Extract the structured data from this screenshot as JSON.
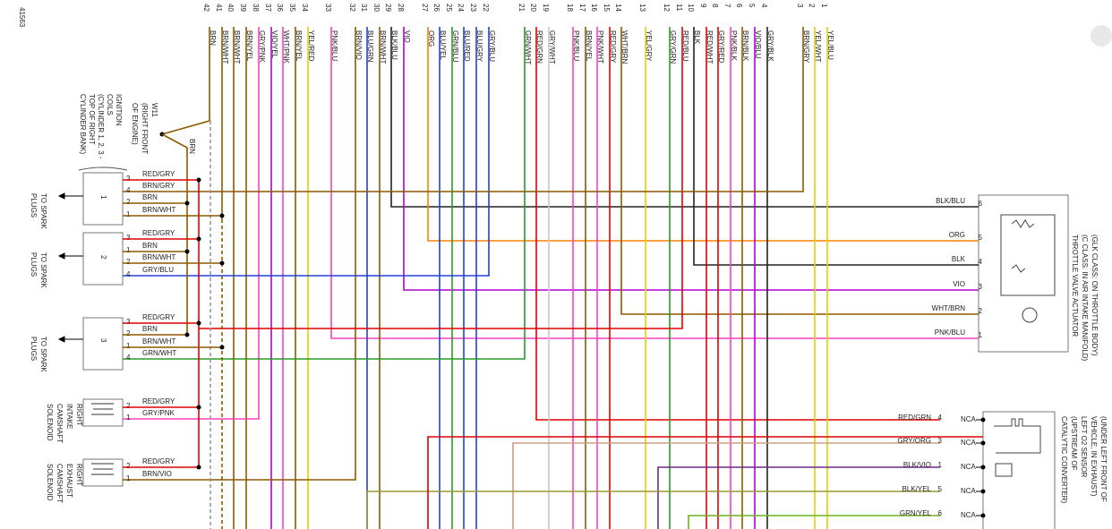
{
  "doc_id": "41563",
  "connector": {
    "pins": [
      {
        "pin": "42",
        "wire": "BRN"
      },
      {
        "pin": "41",
        "wire": "BRN/WHT"
      },
      {
        "pin": "40",
        "wire": "BRN/WHT"
      },
      {
        "pin": "39",
        "wire": "BRN/YEL"
      },
      {
        "pin": "38",
        "wire": "GRY/PNK"
      },
      {
        "pin": "37",
        "wire": "VIO/YEL"
      },
      {
        "pin": "36",
        "wire": "WHT/PNK"
      },
      {
        "pin": "35",
        "wire": "BRN/YEL"
      },
      {
        "pin": "34",
        "wire": "YEL/RED"
      },
      {
        "pin": "33",
        "wire": "PNK/BLU"
      },
      {
        "pin": "32",
        "wire": "BRN/VIO"
      },
      {
        "pin": "31",
        "wire": "BLU/GRN"
      },
      {
        "pin": "30",
        "wire": "BRN/WHT"
      },
      {
        "pin": "29",
        "wire": "BLK/BLU"
      },
      {
        "pin": "28",
        "wire": "VIO"
      },
      {
        "pin": "27",
        "wire": "ORG"
      },
      {
        "pin": "26",
        "wire": "BLU/YEL"
      },
      {
        "pin": "25",
        "wire": "GRN/BLU"
      },
      {
        "pin": "24",
        "wire": "BLU/RED"
      },
      {
        "pin": "23",
        "wire": "BLU/GRY"
      },
      {
        "pin": "22",
        "wire": "GRY/BLU"
      },
      {
        "pin": "21",
        "wire": "GRN/WHT"
      },
      {
        "pin": "20",
        "wire": "RED/GRN"
      },
      {
        "pin": "19",
        "wire": "GRY/WHT"
      },
      {
        "pin": "18",
        "wire": "PNK/BLU"
      },
      {
        "pin": "17",
        "wire": "BRN/YEL"
      },
      {
        "pin": "16",
        "wire": "PNK/WHT"
      },
      {
        "pin": "15",
        "wire": "RED/GRY"
      },
      {
        "pin": "14",
        "wire": "WHT/BRN"
      },
      {
        "pin": "13",
        "wire": "YEL/GRY"
      },
      {
        "pin": "12",
        "wire": "GRY/GRN"
      },
      {
        "pin": "11",
        "wire": "RED/BLU"
      },
      {
        "pin": "10",
        "wire": "BLK"
      },
      {
        "pin": "9",
        "wire": "RED/WHT"
      },
      {
        "pin": "8",
        "wire": "GRY/RED"
      },
      {
        "pin": "7",
        "wire": "PNK/BLK"
      },
      {
        "pin": "6",
        "wire": "BRN/BLK"
      },
      {
        "pin": "5",
        "wire": "VIO/BLU"
      },
      {
        "pin": "4",
        "wire": "GRY/BLK"
      },
      {
        "pin": "3",
        "wire": "BRN/GRY"
      },
      {
        "pin": "2",
        "wire": "YEL/WHT"
      },
      {
        "pin": "1",
        "wire": "YEL/BLU"
      }
    ]
  },
  "splice": {
    "lines": [
      "W11",
      "(RIGHT FRONT",
      "OF ENGINE)"
    ],
    "wire": "BRN"
  },
  "coils": {
    "lines": [
      "IGNITION",
      "COILS",
      "(CYLINDER 1, 2, 3 -",
      "TOP OF RIGHT",
      "CYLINDER BANK)"
    ],
    "units": [
      {
        "label": "1",
        "dest": [
          "TO SPARK",
          "PLUGS"
        ],
        "pins": [
          {
            "pin": "3",
            "wire": "RED/GRY"
          },
          {
            "pin": "4",
            "wire": "BRN/GRY"
          },
          {
            "pin": "2",
            "wire": "BRN"
          },
          {
            "pin": "1",
            "wire": "BRN/WHT"
          }
        ]
      },
      {
        "label": "2",
        "dest": [
          "TO SPARK",
          "PLUGS"
        ],
        "pins": [
          {
            "pin": "3",
            "wire": "RED/GRY"
          },
          {
            "pin": "1",
            "wire": "BRN"
          },
          {
            "pin": "2",
            "wire": "BRN/WHT"
          },
          {
            "pin": "4",
            "wire": "GRY/BLU"
          }
        ]
      },
      {
        "label": "3",
        "dest": [
          "TO SPARK",
          "PLUGS"
        ],
        "pins": [
          {
            "pin": "3",
            "wire": "RED/GRY"
          },
          {
            "pin": "2",
            "wire": "BRN"
          },
          {
            "pin": "1",
            "wire": "BRN/WHT"
          },
          {
            "pin": "4",
            "wire": "GRN/WHT"
          }
        ]
      }
    ]
  },
  "solenoids": [
    {
      "lines": [
        "RIGHT",
        "INTAKE",
        "CAMSHAFT",
        "SOLENOID"
      ],
      "pins": [
        {
          "pin": "2",
          "wire": "RED/GRY"
        },
        {
          "pin": "1",
          "wire": "GRY/PNK"
        }
      ]
    },
    {
      "lines": [
        "RIGHT",
        "EXHAUST",
        "CAMSHAFT",
        "SOLENOID"
      ],
      "pins": [
        {
          "pin": "2",
          "wire": "RED/GRY"
        },
        {
          "pin": "1",
          "wire": "BRN/VIO"
        }
      ]
    }
  ],
  "throttle": {
    "lines": [
      "(GLK CLASS: ON THROTTLE BODY)",
      "(C CLASS: IN AIR INTAKE MANIFOLD)",
      "THROTTLE VALVE ACTUATOR"
    ],
    "pins": [
      {
        "pin": "6",
        "wire": "BLK/BLU"
      },
      {
        "pin": "5",
        "wire": "ORG"
      },
      {
        "pin": "4",
        "wire": "BLK"
      },
      {
        "pin": "3",
        "wire": "VIO"
      },
      {
        "pin": "2",
        "wire": "WHT/BRN"
      },
      {
        "pin": "1",
        "wire": "PNK/BLU"
      }
    ]
  },
  "o2": {
    "lines": [
      "(UNDER LEFT FRONT OF",
      "VEHICLE, IN EXHAUST)",
      "LEFT O2 SENSOR",
      "(UPSTREAM OF",
      "CATALYTIC CONVERTER)"
    ],
    "pins": [
      {
        "pin": "4",
        "wire": "RED/GRN",
        "status": "NCA"
      },
      {
        "pin": "3",
        "wire": "GRY/ORG",
        "status": "NCA"
      },
      {
        "pin": "1",
        "wire": "BLK/VIO",
        "status": "NCA"
      },
      {
        "pin": "5",
        "wire": "BLK/YEL",
        "status": "NCA"
      },
      {
        "pin": "6",
        "wire": "GRN/YEL",
        "status": "NCA"
      }
    ]
  }
}
